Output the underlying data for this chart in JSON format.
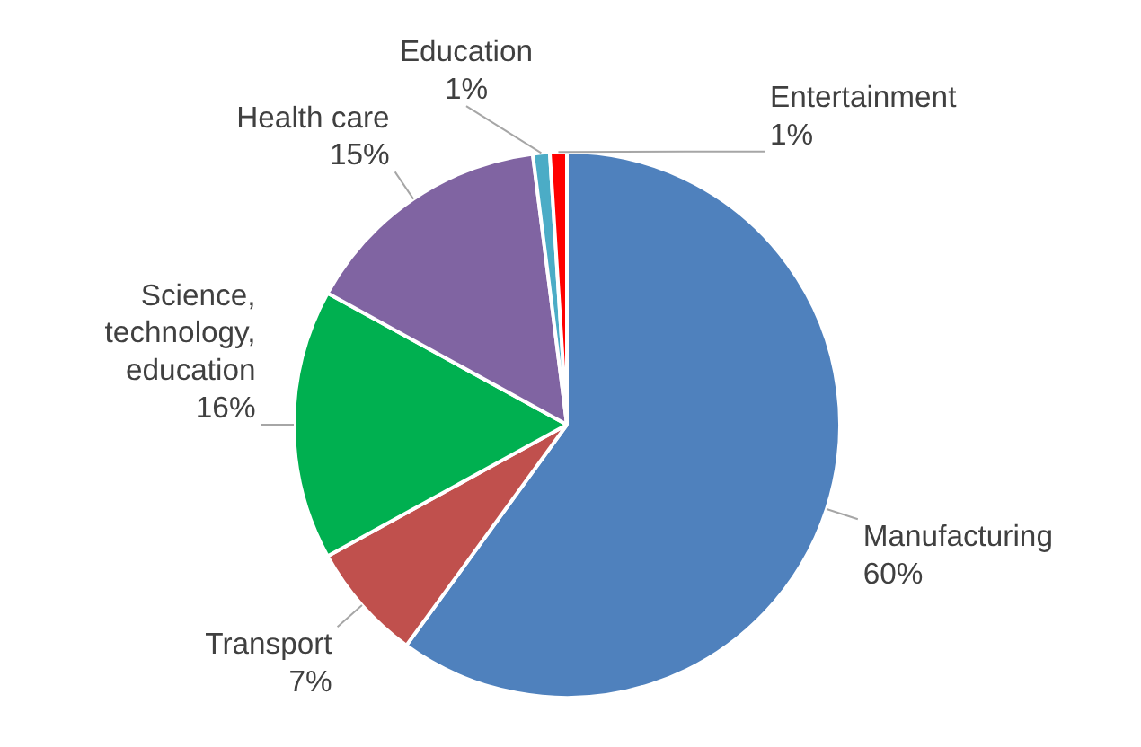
{
  "chart_data": {
    "type": "pie",
    "categories": [
      "Manufacturing",
      "Transport",
      "Science, technology, education",
      "Health care",
      "Education",
      "Entertainment"
    ],
    "values": [
      60,
      7,
      16,
      15,
      1,
      1
    ],
    "colors": [
      "#4f81bd",
      "#c0504d",
      "#00b050",
      "#8064a2",
      "#4bacc6",
      "#ff0000"
    ],
    "value_labels": [
      "60%",
      "7%",
      "16%",
      "15%",
      "1%",
      "1%"
    ]
  }
}
